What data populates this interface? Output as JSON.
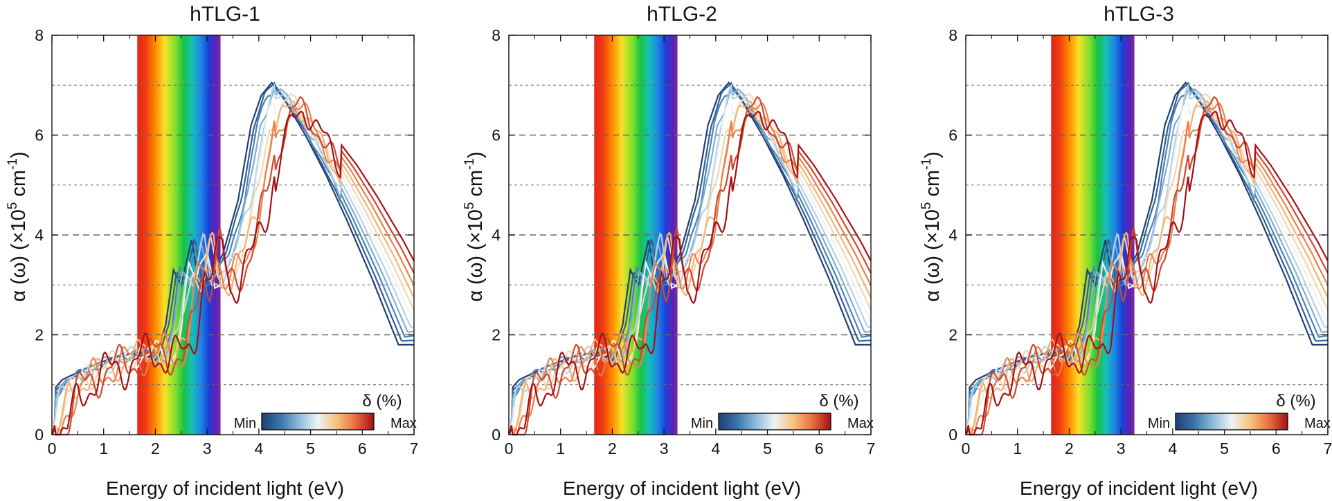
{
  "figure": {
    "count": 3
  },
  "chart_data": [
    {
      "type": "line",
      "title": "hTLG-1",
      "xlabel": "Energy of incident light (eV)",
      "ylabel_main": "α (ω) (×10",
      "ylabel_exp": "5",
      "ylabel_unit": " cm",
      "ylabel_unit_exp": "-1",
      "ylabel_close": ")",
      "xlim": [
        0,
        7
      ],
      "ylim": [
        0,
        8
      ],
      "x_ticks": [
        "0",
        "1",
        "2",
        "3",
        "4",
        "5",
        "6",
        "7"
      ],
      "y_ticks": [
        "0",
        "2",
        "4",
        "6",
        "8"
      ],
      "grid": "dashed horizontal at every 1 unit",
      "visible_band_ev": [
        1.65,
        3.26
      ],
      "colorbar": {
        "title": "δ (%)",
        "min_label": "Min",
        "max_label": "Max",
        "colors": [
          "#1f3f72",
          "#3b74ad",
          "#8dbcdb",
          "#eef3f5",
          "#f7c27e",
          "#e8703f",
          "#a50f15"
        ]
      },
      "strain_shift": 0,
      "curve_count": 11,
      "reference_curve": {
        "x": [
          0.0,
          0.2,
          0.5,
          1.0,
          1.5,
          2.0,
          2.3,
          2.5,
          2.65,
          2.8,
          3.0,
          3.15,
          3.3,
          3.6,
          3.9,
          4.15,
          4.35,
          4.55,
          4.8,
          5.2,
          5.6,
          6.0,
          6.5,
          7.0
        ],
        "y": [
          0.0,
          0.75,
          1.1,
          1.35,
          1.55,
          1.65,
          1.5,
          2.2,
          3.3,
          3.0,
          3.9,
          3.0,
          3.1,
          3.6,
          4.7,
          6.2,
          6.8,
          7.05,
          6.7,
          6.0,
          5.2,
          4.3,
          3.1,
          1.8
        ]
      }
    },
    {
      "type": "line",
      "title": "hTLG-2",
      "xlabel": "Energy of incident light (eV)",
      "ylabel_main": "α (ω) (×10",
      "ylabel_exp": "5",
      "ylabel_unit": " cm",
      "ylabel_unit_exp": "-1",
      "ylabel_close": ")",
      "xlim": [
        0,
        7
      ],
      "ylim": [
        0,
        8
      ],
      "x_ticks": [
        "0",
        "1",
        "2",
        "3",
        "4",
        "5",
        "6",
        "7"
      ],
      "y_ticks": [
        "0",
        "2",
        "4",
        "6",
        "8"
      ],
      "grid": "dashed horizontal at every 1 unit",
      "visible_band_ev": [
        1.65,
        3.26
      ],
      "colorbar": {
        "title": "δ (%)",
        "min_label": "Min",
        "max_label": "Max",
        "colors": [
          "#1f3f72",
          "#3b74ad",
          "#8dbcdb",
          "#eef3f5",
          "#f7c27e",
          "#e8703f",
          "#a50f15"
        ]
      },
      "strain_shift": 0,
      "curve_count": 11,
      "reference_curve": {
        "x": [
          0.0,
          0.2,
          0.5,
          1.0,
          1.5,
          2.0,
          2.3,
          2.5,
          2.65,
          2.8,
          3.0,
          3.15,
          3.3,
          3.6,
          3.9,
          4.15,
          4.35,
          4.55,
          4.8,
          5.2,
          5.6,
          6.0,
          6.5,
          7.0
        ],
        "y": [
          0.0,
          0.75,
          1.1,
          1.35,
          1.55,
          1.65,
          1.5,
          2.2,
          3.3,
          3.0,
          3.9,
          3.0,
          3.1,
          3.6,
          4.7,
          6.2,
          6.8,
          7.05,
          6.7,
          6.0,
          5.2,
          4.3,
          3.1,
          1.8
        ]
      }
    },
    {
      "type": "line",
      "title": "hTLG-3",
      "xlabel": "Energy of incident light (eV)",
      "ylabel_main": "α (ω) (×10",
      "ylabel_exp": "5",
      "ylabel_unit": " cm",
      "ylabel_unit_exp": "-1",
      "ylabel_close": ")",
      "xlim": [
        0,
        7
      ],
      "ylim": [
        0,
        8
      ],
      "x_ticks": [
        "0",
        "1",
        "2",
        "3",
        "4",
        "5",
        "6",
        "7"
      ],
      "y_ticks": [
        "0",
        "2",
        "4",
        "6",
        "8"
      ],
      "grid": "dashed horizontal at every 1 unit",
      "visible_band_ev": [
        1.65,
        3.26
      ],
      "colorbar": {
        "title": "δ (%)",
        "min_label": "Min",
        "max_label": "Max",
        "colors": [
          "#1f3f72",
          "#3b74ad",
          "#8dbcdb",
          "#eef3f5",
          "#f7c27e",
          "#e8703f",
          "#a50f15"
        ]
      },
      "strain_shift": 0,
      "curve_count": 11,
      "reference_curve": {
        "x": [
          0.0,
          0.2,
          0.5,
          1.0,
          1.5,
          2.0,
          2.3,
          2.5,
          2.65,
          2.8,
          3.0,
          3.15,
          3.3,
          3.6,
          3.9,
          4.15,
          4.35,
          4.55,
          4.8,
          5.2,
          5.6,
          6.0,
          6.5,
          7.0
        ],
        "y": [
          0.0,
          0.75,
          1.1,
          1.35,
          1.55,
          1.65,
          1.5,
          2.2,
          3.3,
          3.0,
          3.9,
          3.0,
          3.1,
          3.6,
          4.7,
          6.2,
          6.8,
          7.05,
          6.7,
          6.0,
          5.2,
          4.3,
          3.1,
          1.8
        ]
      }
    }
  ]
}
